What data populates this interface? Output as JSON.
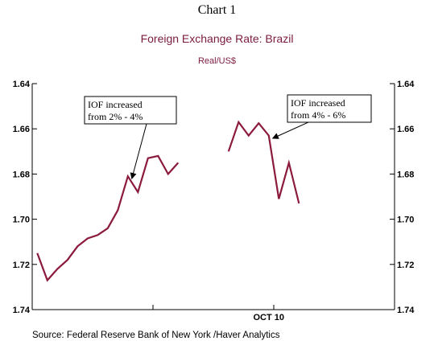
{
  "header": {
    "chart_number": "Chart 1",
    "title": "Foreign Exchange Rate: Brazil",
    "subtitle": "Real/US$"
  },
  "footer": {
    "source": "Source:  Federal Reserve Bank of New York /Haver Analytics"
  },
  "colors": {
    "series": "#8b1a3c",
    "text_accent": "#7b1b3f",
    "axis": "#000000"
  },
  "chart_data": {
    "type": "line",
    "title": "Foreign Exchange Rate: Brazil",
    "subtitle": "Real/US$",
    "ylabel": "",
    "xlabel": "",
    "y_axis_inverted": true,
    "ylim": [
      1.64,
      1.74
    ],
    "y_ticks": [
      "1.64",
      "1.66",
      "1.68",
      "1.70",
      "1.72",
      "1.74"
    ],
    "x_tick_labels": [
      "OCT 10"
    ],
    "x_tick_label_index": 23,
    "x_range": [
      -0.5,
      35.5
    ],
    "x_minor_ticks": [
      11.5,
      23.5,
      35.5
    ],
    "grid": false,
    "legend": "none",
    "series": [
      {
        "segments": [
          {
            "x": [
              0,
              1,
              2,
              3,
              4,
              5,
              6,
              7,
              8,
              9,
              10,
              11,
              12,
              13,
              14,
              15,
              16,
              17
            ],
            "values": [
              1.715,
              1.727,
              1.722,
              1.718,
              1.712,
              1.7085,
              1.707,
              1.704,
              1.696,
              1.681,
              1.688,
              1.673,
              1.672,
              1.68,
              1.675,
              null,
              null,
              null
            ]
          },
          {
            "x": [
              19,
              20,
              21,
              22,
              23,
              24,
              25,
              26,
              27
            ],
            "values": [
              1.67,
              1.657,
              1.663,
              1.6575,
              1.663,
              1.691,
              1.675,
              1.693,
              null
            ]
          }
        ]
      }
    ],
    "annotations": [
      {
        "lines": [
          "IOF increased",
          "from 2% - 4%"
        ],
        "points_to_x": 9
      },
      {
        "lines": [
          "IOF increased",
          "from 4% - 6%"
        ],
        "points_to_x": 23
      }
    ]
  }
}
